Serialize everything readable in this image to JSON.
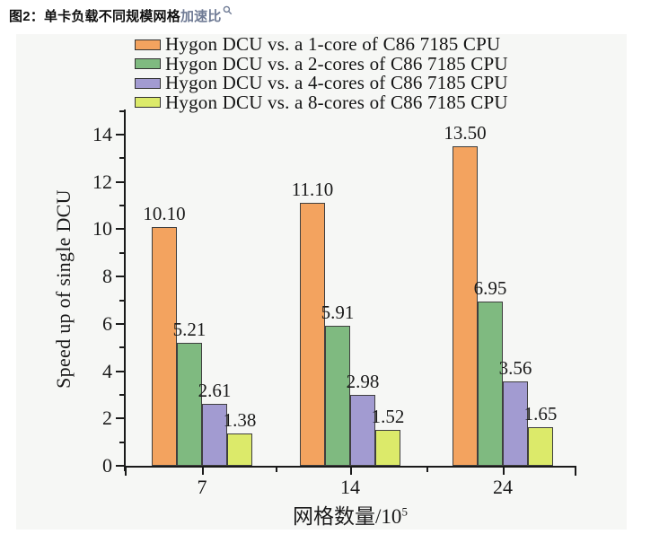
{
  "caption": {
    "prefix": "图2：",
    "text": "单卡负载不同规模网格",
    "link": "加速比",
    "link_icon": "search-icon"
  },
  "colors": {
    "page_bg": "#ffffff",
    "figure_bg": "#f6f7f5",
    "axis": "#1a1a1a",
    "text": "#111111",
    "caption_link": "#6f7b95",
    "bar_border": "#3f3f3f"
  },
  "chart_data": {
    "type": "bar",
    "title": "",
    "categories": [
      "7",
      "14",
      "24"
    ],
    "series": [
      {
        "name": "Hygon DCU vs. a 1-core of C86 7185 CPU",
        "color": "#F3A35F",
        "values": [
          10.1,
          11.1,
          13.5
        ]
      },
      {
        "name": "Hygon DCU vs. a 2-cores of C86 7185 CPU",
        "color": "#7FBA80",
        "values": [
          5.21,
          5.91,
          6.95
        ]
      },
      {
        "name": "Hygon DCU vs. a 4-cores of C86 7185 CPU",
        "color": "#A29BD1",
        "values": [
          2.61,
          2.98,
          3.56
        ]
      },
      {
        "name": "Hygon DCU vs. a 8-cores of C86 7185 CPU",
        "color": "#DCEA6A",
        "values": [
          1.38,
          1.52,
          1.65
        ]
      }
    ],
    "value_labels": [
      [
        "10.10",
        "11.10",
        "13.50"
      ],
      [
        "5.21",
        "5.91",
        "6.95"
      ],
      [
        "2.61",
        "2.98",
        "3.56"
      ],
      [
        "1.38",
        "1.52",
        "1.65"
      ]
    ],
    "ylabel": "Speed up of single DCU",
    "xlabel": "网格数量/10⁵",
    "xlabel_main": "网格数量/10",
    "xlabel_sup": "5",
    "ylim": [
      0,
      15
    ],
    "ytick_step": 2,
    "ytick_minor_step": 1,
    "grid": false,
    "legend_position": "top-left"
  }
}
